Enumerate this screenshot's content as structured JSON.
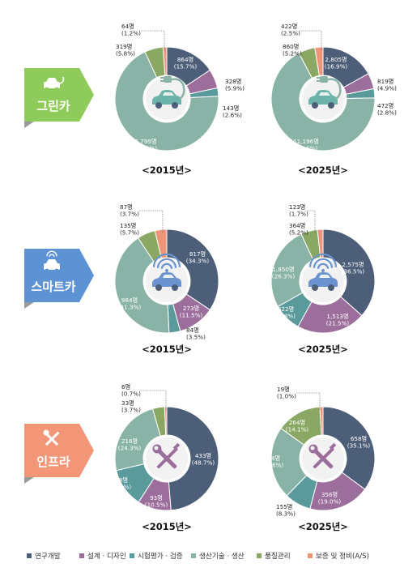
{
  "colors": [
    "#4d5f78",
    "#9c6e9c",
    "#5a9a9a",
    "#8ab3a7",
    "#8aa863",
    "#ee9478"
  ],
  "legend": [
    "연구개발",
    "설계 · 디자인",
    "시험평가 · 검증",
    "생산기술 · 생산",
    "품질관리",
    "보증 및 정비(A/S)"
  ],
  "categories": [
    {
      "label": "그린카",
      "color": "#8fcb5a",
      "icon": "plug-car-icon"
    },
    {
      "label": "스마트카",
      "color": "#5d93d4",
      "icon": "wifi-car-icon"
    },
    {
      "label": "인프라",
      "color": "#f29677",
      "icon": "wrench-screwdriver-icon"
    }
  ],
  "chart_data": [
    {
      "type": "pie",
      "group": "그린카",
      "year_label": "<2015년>",
      "values": [
        864,
        328,
        143,
        3799,
        319,
        64
      ],
      "pct": [
        "15.7%",
        "5.9%",
        "2.6%",
        "68.9%",
        "5.8%",
        "1.2%"
      ]
    },
    {
      "type": "pie",
      "group": "그린카",
      "year_label": "<2025년>",
      "values": [
        2805,
        819,
        472,
        11196,
        860,
        422
      ],
      "pct": [
        "16.9%",
        "4.9%",
        "2.8%",
        "67.6%",
        "5.2%",
        "2.5%"
      ]
    },
    {
      "type": "pie",
      "group": "스마트카",
      "year_label": "<2015년>",
      "values": [
        817,
        273,
        84,
        984,
        135,
        87
      ],
      "pct": [
        "34.3%",
        "11.5%",
        "3.5%",
        "41.3%",
        "5.7%",
        "3.7%"
      ]
    },
    {
      "type": "pie",
      "group": "스마트카",
      "year_label": "<2025년>",
      "values": [
        2575,
        1513,
        622,
        1850,
        364,
        123
      ],
      "pct": [
        "36.5%",
        "21.5%",
        "8.8%",
        "26.3%",
        "5.2%",
        "1.7%"
      ]
    },
    {
      "type": "pie",
      "group": "인프라",
      "year_label": "<2015년>",
      "values": [
        433,
        93,
        108,
        216,
        33,
        6
      ],
      "pct": [
        "48.7%",
        "10.5%",
        "12.1%",
        "24.3%",
        "3.7%",
        "0.7%"
      ]
    },
    {
      "type": "pie",
      "group": "인프라",
      "year_label": "<2025년>",
      "values": [
        658,
        356,
        155,
        424,
        264,
        19
      ],
      "pct": [
        "35.1%",
        "19.0%",
        "8.3%",
        "22.6%",
        "14.1%",
        "1.0%"
      ]
    }
  ],
  "unit": "명"
}
